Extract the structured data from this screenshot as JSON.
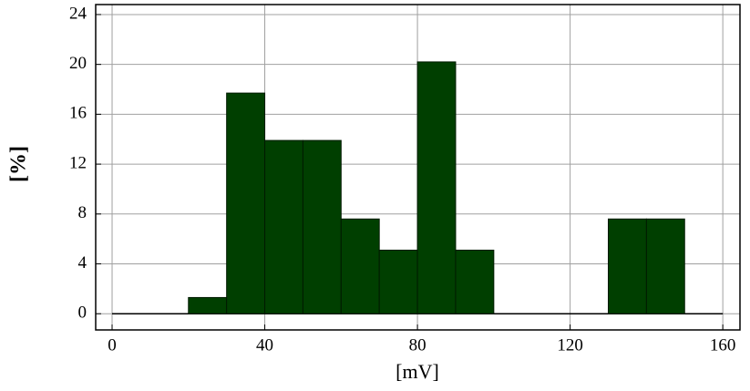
{
  "chart_data": {
    "type": "histogram",
    "xlabel": "[mV]",
    "ylabel": "[%]",
    "bins": [
      20,
      30,
      40,
      50,
      60,
      70,
      80,
      90,
      100,
      110,
      120,
      130,
      140,
      150
    ],
    "values": [
      1.3,
      17.7,
      13.9,
      13.9,
      7.6,
      5.1,
      20.2,
      5.1,
      0,
      0,
      0,
      7.6,
      7.6
    ],
    "color": "#003f00",
    "xlim": [
      -4.3,
      164.5
    ],
    "ylim": [
      -1.3,
      24.8
    ],
    "xticks": [
      0,
      40,
      80,
      120,
      160
    ],
    "yticks": [
      0,
      4,
      8,
      12,
      16,
      20,
      24
    ],
    "grid": true
  }
}
